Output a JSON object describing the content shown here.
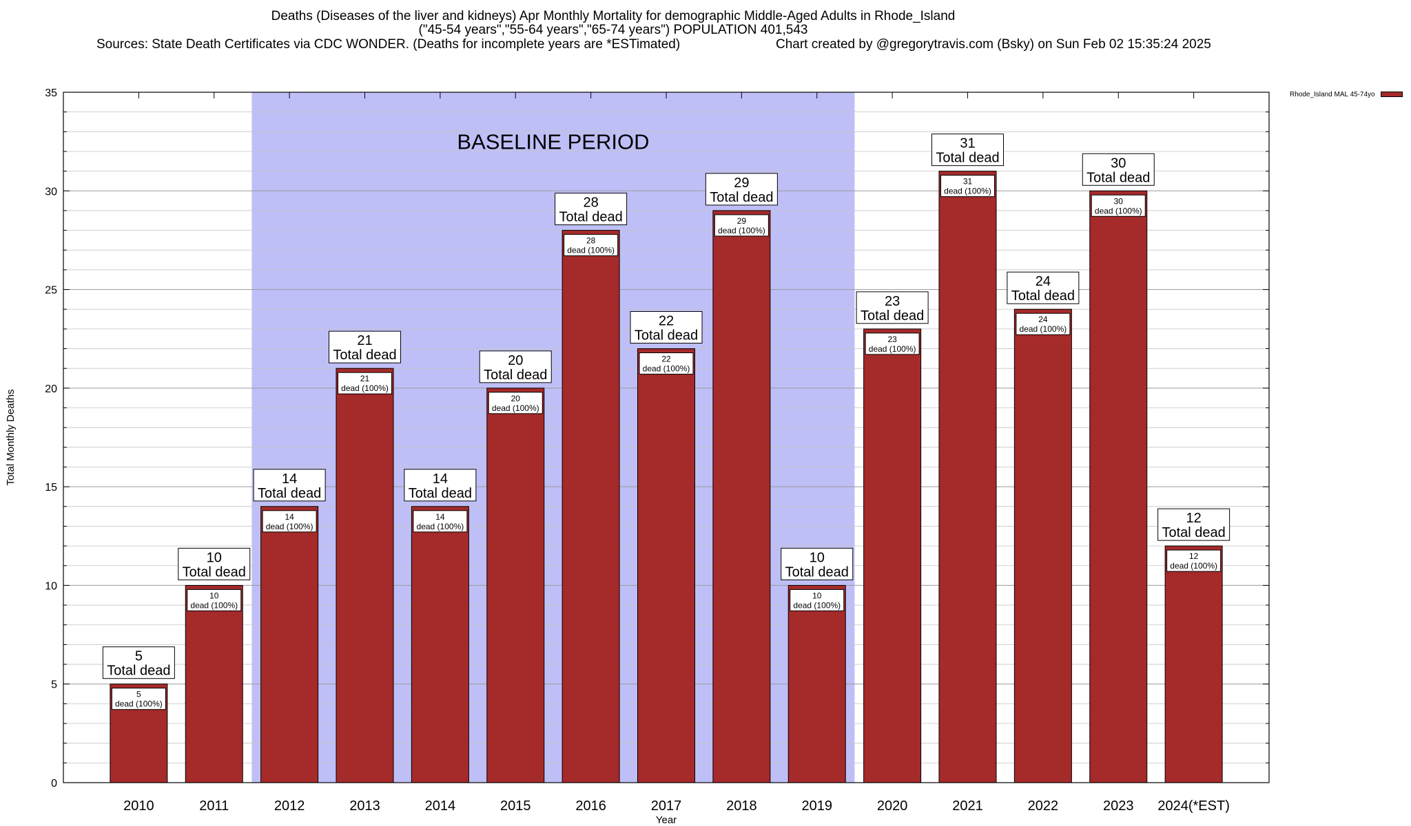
{
  "header": {
    "line1": "Deaths (Diseases of the liver and kidneys) Apr Monthly Mortality for demographic Middle-Aged Adults in Rhode_Island",
    "line2": "(\"45-54 years\",\"55-64 years\",\"65-74 years\") POPULATION 401,543",
    "sources": "Sources: State Death Certificates via CDC WONDER. (Deaths for incomplete years are *ESTimated)",
    "credit": "Chart created by @gregorytravis.com (Bsky) on Sun Feb 02 15:35:24 2025"
  },
  "legend": {
    "label": "Rhode_Island MAL 45-74yo",
    "color": "#a52a2a"
  },
  "chart_data": {
    "type": "bar",
    "title": "Deaths (Diseases of the liver and kidneys) Apr Monthly Mortality for demographic Middle-Aged Adults in Rhode_Island",
    "xlabel": "Year",
    "ylabel": "Total Monthly Deaths",
    "categories": [
      "2010",
      "2011",
      "2012",
      "2013",
      "2014",
      "2015",
      "2016",
      "2017",
      "2018",
      "2019",
      "2020",
      "2021",
      "2022",
      "2023",
      "2024(*EST)"
    ],
    "series": [
      {
        "name": "Rhode_Island MAL 45-74yo",
        "values": [
          5,
          10,
          14,
          21,
          14,
          20,
          28,
          22,
          29,
          10,
          23,
          31,
          24,
          30,
          12
        ]
      }
    ],
    "top_label_suffix": "Total dead",
    "inner_label_suffix": "dead (100%)",
    "ylim": [
      0,
      35
    ],
    "yticks": [
      0,
      5,
      10,
      15,
      20,
      25,
      30,
      35
    ],
    "grid": true,
    "baseline": {
      "label": "BASELINE PERIOD",
      "from": "2012",
      "to": "2019",
      "color": "#bfbff7"
    },
    "bar_color": "#a52a2a",
    "legend_position": "top-right outside"
  }
}
